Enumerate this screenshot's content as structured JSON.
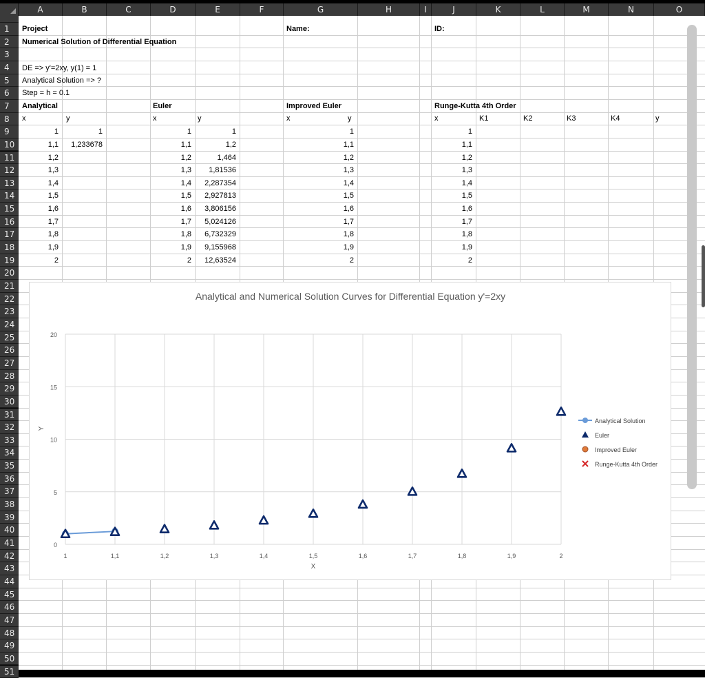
{
  "columns": [
    "A",
    "B",
    "C",
    "D",
    "E",
    "F",
    "G",
    "H",
    "I",
    "J",
    "K",
    "L",
    "M",
    "N",
    "O"
  ],
  "rows": [
    "1",
    "2",
    "3",
    "4",
    "5",
    "6",
    "7",
    "8",
    "9",
    "10",
    "11",
    "12",
    "13",
    "14",
    "15",
    "16",
    "17",
    "18",
    "19",
    "20",
    "21",
    "22",
    "23",
    "24",
    "25",
    "26",
    "27",
    "28",
    "29",
    "30",
    "31",
    "32",
    "33",
    "34",
    "35",
    "36",
    "37",
    "38",
    "39",
    "40",
    "41",
    "42",
    "43",
    "44",
    "45",
    "46",
    "47",
    "48",
    "49",
    "50",
    "51"
  ],
  "header": {
    "project": "Project",
    "title": "Numerical Solution of Differential Equation",
    "name_label": "Name:",
    "id_label": "ID:",
    "de": "DE => y'=2xy, y(1) = 1",
    "analytical_q": "Analytical Solution => ?",
    "step": "Step = h = 0.1"
  },
  "sections": {
    "analytical": "Analytical",
    "euler": "Euler",
    "improved": "Improved Euler",
    "rk4": "Runge-Kutta 4th Order"
  },
  "col_labels": {
    "a_x": "x",
    "a_y": "y",
    "e_x": "x",
    "e_y": "y",
    "i_x": "x",
    "i_y": "y",
    "r_x": "x",
    "k1": "K1",
    "k2": "K2",
    "k3": "K3",
    "k4": "K4",
    "r_y": "y"
  },
  "x_values": [
    "1",
    "1,1",
    "1,2",
    "1,3",
    "1,4",
    "1,5",
    "1,6",
    "1,7",
    "1,8",
    "1,9",
    "2"
  ],
  "analytical_y": [
    "1",
    "1,233678"
  ],
  "euler_y": [
    "1",
    "1,2",
    "1,464",
    "1,81536",
    "2,287354",
    "2,927813",
    "3,806156",
    "5,024126",
    "6,732329",
    "9,155968",
    "12,63524"
  ],
  "chart_data": {
    "type": "scatter",
    "title": "Analytical and Numerical Solution Curves for Differential Equation y'=2xy",
    "xlabel": "X",
    "ylabel": "Y",
    "xlim": [
      1,
      2
    ],
    "ylim": [
      0,
      20
    ],
    "x_ticks": [
      "1",
      "1,1",
      "1,2",
      "1,3",
      "1,4",
      "1,5",
      "1,6",
      "1,7",
      "1,8",
      "1,9",
      "2"
    ],
    "y_ticks": [
      "0",
      "5",
      "10",
      "15",
      "20"
    ],
    "legend_position": "right",
    "series": [
      {
        "name": "Analytical Solution",
        "marker": "line-circle",
        "color": "#6a9bd8",
        "x": [
          1,
          1.1
        ],
        "y": [
          1,
          1.233678
        ]
      },
      {
        "name": "Euler",
        "marker": "triangle",
        "color": "#0d2a6b",
        "x": [
          1,
          1.1,
          1.2,
          1.3,
          1.4,
          1.5,
          1.6,
          1.7,
          1.8,
          1.9,
          2
        ],
        "y": [
          1,
          1.2,
          1.464,
          1.81536,
          2.287354,
          2.927813,
          3.806156,
          5.024126,
          6.732329,
          9.155968,
          12.63524
        ]
      },
      {
        "name": "Improved Euler",
        "marker": "circle",
        "color": "#e07b39",
        "x": [],
        "y": []
      },
      {
        "name": "Runge-Kutta 4th Order",
        "marker": "x",
        "color": "#d62728",
        "x": [],
        "y": []
      }
    ]
  }
}
